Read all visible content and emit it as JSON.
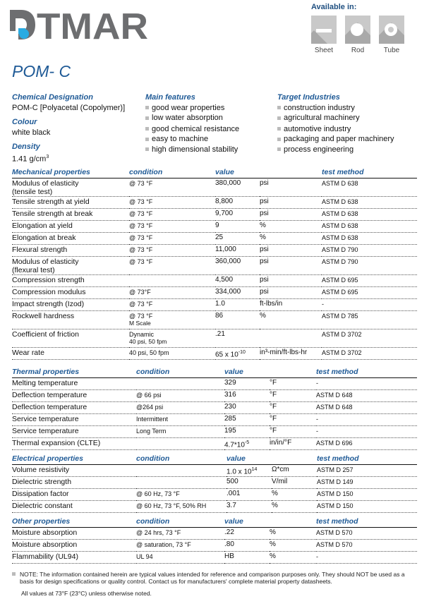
{
  "logo": {
    "text": "DTMAR",
    "colors": {
      "gray": "#6d6e70",
      "blue": "#29abe2"
    }
  },
  "available": {
    "title": "Available in:",
    "forms": [
      {
        "label": "Sheet",
        "icon": "sheet-icon"
      },
      {
        "label": "Rod",
        "icon": "rod-icon"
      },
      {
        "label": "Tube",
        "icon": "tube-icon"
      }
    ]
  },
  "title": "POM- C",
  "info": {
    "chem_label": "Chemical Designation",
    "chem_value": "POM-C [Polyacetal (Copolymer)]",
    "colour_label": "Colour",
    "colour_value": "white black",
    "density_label": "Density",
    "density_value": "1.41 g/cm",
    "density_sup": "3"
  },
  "features": {
    "title": "Main features",
    "items": [
      "good wear properties",
      "low water absorption",
      "good chemical resistance",
      "easy to machine",
      "high dimensional stability"
    ]
  },
  "industries": {
    "title": "Target Industries",
    "items": [
      "construction industry",
      "agricultural machinery",
      "automotive industry",
      "packaging and paper machinery",
      "process engineering"
    ]
  },
  "tables": [
    {
      "title": "Mechanical properties",
      "condition": "condition",
      "value": "value",
      "method": "test method",
      "cols": [
        166,
        122,
        63,
        88,
        135
      ],
      "rows": [
        {
          "p": "Modulus of elasticity",
          "p2": "(tensile test)",
          "c": "@ 73 °F",
          "v": "380,000",
          "u": "psi",
          "m": "ASTM D 638"
        },
        {
          "p": "Tensile strength at yield",
          "c": "@ 73 °F",
          "v": "8,800",
          "u": "psi",
          "m": "ASTM D 638"
        },
        {
          "p": "Tensile strength at break",
          "c": "@ 73 °F",
          "v": "9,700",
          "u": "psi",
          "m": "ASTM D 638"
        },
        {
          "p": "Elongation at yield",
          "c": "@ 73 °F",
          "v": "9",
          "u": "%",
          "m": "ASTM D 638"
        },
        {
          "p": "Elongation at break",
          "c": "@ 73 °F",
          "v": "25",
          "u": "%",
          "m": "ASTM D 638"
        },
        {
          "p": "Flexural strength",
          "c": "@ 73 °F",
          "v": "11,000",
          "u": "psi",
          "m": "ASTM D 790"
        },
        {
          "p": "Modulus of elasticity",
          "p2": "(flexural test)",
          "c": "@ 73 °F",
          "v": "360,000",
          "u": "psi",
          "m": "ASTM D 790"
        },
        {
          "p": "Compression strength",
          "c": "",
          "v": "4,500",
          "u": "psi",
          "m": "ASTM D 695"
        },
        {
          "p": "Compression modulus",
          "c": "@ 73°F",
          "v": "334,000",
          "u": "psi",
          "m": "ASTM D 695"
        },
        {
          "p": "Impact strength (Izod)",
          "c": "@ 73 °F",
          "v": "1.0",
          "u": "ft-lbs/in",
          "m": "-"
        },
        {
          "p": "Rockwell hardness",
          "c": "@ 73 °F",
          "c2": "M Scale",
          "v": "86",
          "u": "%",
          "m": "ASTM D 785"
        },
        {
          "p": "Coefficient of friction",
          "c": "Dynamic",
          "c2": "40 psi, 50 fpm",
          "v": ".21",
          "u": "",
          "m": "ASTM D 3702"
        },
        {
          "p": "Wear rate",
          "c": "40 psi, 50 fpm",
          "v": "65 x 10",
          "vs": "-10",
          "u": "in³-min/ft-lbs-hr",
          "m": "ASTM D 3702"
        }
      ]
    },
    {
      "title": "Thermal properties",
      "condition": "condition",
      "value": "value",
      "method": "test method",
      "cols": [
        176,
        125,
        64,
        66,
        143
      ],
      "rows": [
        {
          "p": "Melting temperature",
          "c": "",
          "v": "329",
          "u": "°F",
          "m": "-"
        },
        {
          "p": "Deflection temperature",
          "c": "@ 66 psi",
          "v": "316",
          "u": "°F",
          "m": "ASTM D 648"
        },
        {
          "p": "Deflection temperature",
          "c": "@264 psi",
          "v": "230",
          "u": "°F",
          "m": "ASTM D 648"
        },
        {
          "p": "Service temperature",
          "c": "Intermittent",
          "v": "285",
          "u": "°F",
          "m": "-"
        },
        {
          "p": "Service temperature",
          "c": "Long Term",
          "v": "195",
          "u": "°F",
          "m": "-"
        },
        {
          "p": "Thermal expansion (CLTE)",
          "c": "",
          "v": "4.7*10",
          "vs": "-5",
          "u": "in/in/°F",
          "m": "ASTM D 696"
        }
      ]
    },
    {
      "title": "Electrical properties",
      "condition": "condition",
      "value": "value",
      "method": "test method",
      "cols": [
        176,
        128,
        64,
        64,
        142
      ],
      "rows": [
        {
          "p": "Volume resistivity",
          "c": "",
          "v": "1.0 x 10",
          "vs": "14",
          "u": "Ω*cm",
          "m": "ASTM D 257"
        },
        {
          "p": "Dielectric strength",
          "c": "",
          "v": "500",
          "u": "V/mil",
          "m": "ASTM D 149"
        },
        {
          "p": "Dissipation factor",
          "c": "@ 60 Hz, 73 °F",
          "v": ".001",
          "u": "%",
          "m": "ASTM D 150"
        },
        {
          "p": "Dielectric constant",
          "c": "@ 60 Hz, 73 °F, 50% RH",
          "v": "3.7",
          "u": "%",
          "m": "ASTM D 150"
        }
      ]
    },
    {
      "title": "Other properties",
      "condition": "condition",
      "value": "value",
      "method": "test method",
      "cols": [
        176,
        125,
        64,
        66,
        143
      ],
      "rows": [
        {
          "p": "Moisture absorption",
          "c": "@ 24 hrs, 73 °F",
          "v": ".22",
          "u": "%",
          "m": "ASTM D 570"
        },
        {
          "p": "Moisture absorption",
          "c": "@ saturation, 73 °F",
          "v": ".80",
          "u": "%",
          "m": "ASTM D 570"
        },
        {
          "p": "Flammability (UL94)",
          "c": "UL 94",
          "v": "HB",
          "u": "%",
          "m": "-"
        }
      ]
    }
  ],
  "note": "NOTE: The information contained herein are typical values intended for reference and comparison purposes only.  They should NOT be used as a basis for design specifications or quality control.  Contact us for manufacturers' complete material property datasheets.",
  "note2": "All values at 73°F (23°C) unless otherwise noted.",
  "colors": {
    "heading": "#1f5a96",
    "bullet": "#bbbbbb"
  }
}
